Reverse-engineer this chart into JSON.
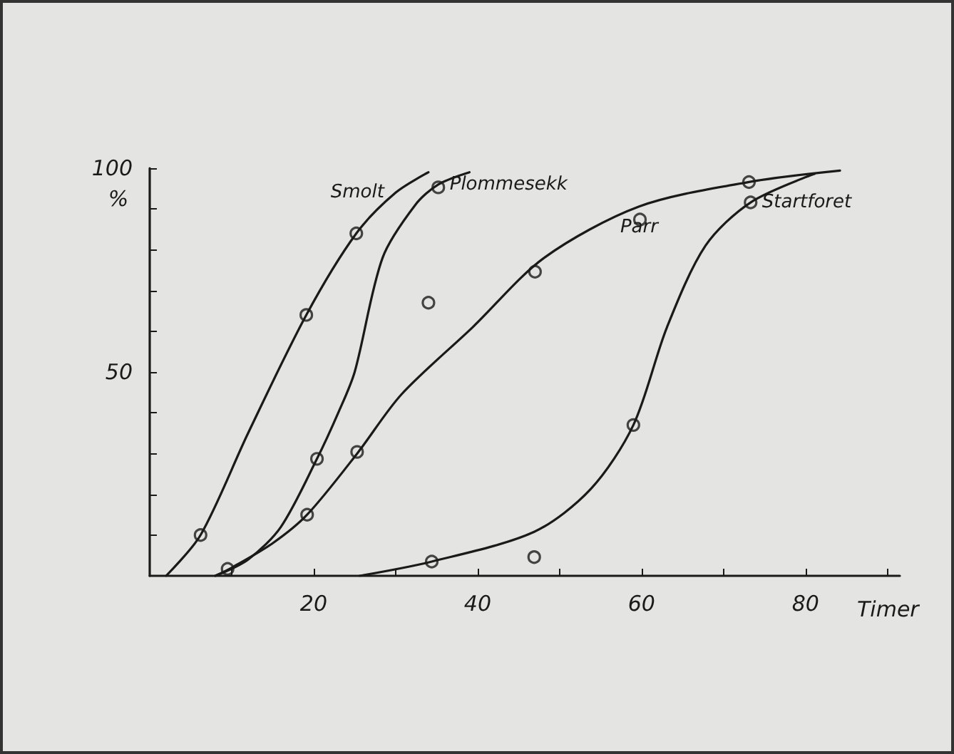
{
  "chart_data": {
    "type": "line",
    "xlabel": "Timer",
    "ylabel": "%",
    "line_style": "solid",
    "grid": false,
    "legend": false,
    "xlim": [
      0,
      91.5
    ],
    "ylim": [
      0,
      100
    ],
    "xticks": [
      {
        "value": 10,
        "label": null
      },
      20,
      {
        "value": 30,
        "label": null
      },
      40,
      {
        "value": 50,
        "label": null
      },
      60,
      {
        "value": 70,
        "label": null
      },
      80,
      {
        "value": 90,
        "label": null
      }
    ],
    "yticks": [
      {
        "value": 10,
        "label": null
      },
      {
        "value": 20,
        "label": null
      },
      {
        "value": 30,
        "label": null
      },
      {
        "value": 40,
        "label": null
      },
      50,
      {
        "value": 60,
        "label": null
      },
      {
        "value": 70,
        "label": null
      },
      {
        "value": 80,
        "label": null
      },
      {
        "value": 90,
        "label": null
      },
      100
    ],
    "series": [
      {
        "name": "Smolt",
        "color": "#1a1a1a",
        "marker": "none",
        "x": [
          2,
          6.2,
          12,
          19.1,
          25.2,
          30,
          34
        ],
        "values": [
          0,
          10,
          35,
          64,
          84,
          94,
          99
        ]
      },
      {
        "name": "Plommesekk",
        "color": "#1a1a1a",
        "marker": "none",
        "x": [
          8,
          12,
          16,
          20.4,
          23,
          25,
          28.4,
          32.4,
          35.2,
          39
        ],
        "values": [
          0,
          4,
          12,
          28.7,
          40,
          50,
          78,
          91,
          96,
          99
        ]
      },
      {
        "name": "Parr",
        "color": "#1a1a1a",
        "marker": "none",
        "x": [
          8,
          10,
          15,
          19.2,
          25.3,
          30.7,
          39.4,
          48.1,
          59.7,
          73.1,
          84.2
        ],
        "values": [
          0,
          2,
          8,
          15,
          30,
          44.5,
          61,
          78,
          90.6,
          96.6,
          99.4
        ]
      },
      {
        "name": "Startforet",
        "color": "#1a1a1a",
        "marker": "none",
        "x": [
          25.6,
          34.4,
          46.9,
          53.8,
          59,
          63.1,
          67.8,
          73.3,
          81.1
        ],
        "values": [
          0,
          3.5,
          10.8,
          21.3,
          37,
          61,
          81,
          91.6,
          98.6
        ]
      },
      {
        "type": "scatter",
        "color": "#1a1a1a",
        "marker": "circle",
        "x": [
          6.2,
          19.1,
          25.2,
          9.5,
          20.4,
          35.2,
          19.2,
          25.3,
          34,
          47,
          59.8,
          73.1,
          34.4,
          46.9,
          59,
          73.3
        ],
        "values": [
          10,
          64,
          84,
          1.7,
          28.7,
          95.3,
          15,
          30.4,
          67,
          74.6,
          87.4,
          96.6,
          3.5,
          4.6,
          37,
          91.6
        ]
      }
    ]
  }
}
